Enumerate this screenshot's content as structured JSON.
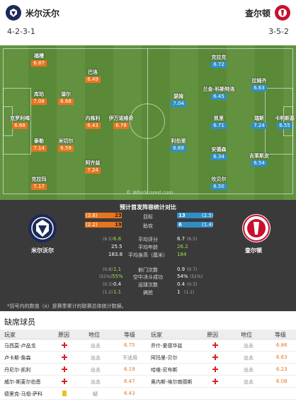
{
  "home": {
    "name": "米尔沃尔",
    "formation": "4-2-3-1"
  },
  "away": {
    "name": "查尔顿",
    "formation": "3-5-2"
  },
  "home_players": [
    {
      "name": "福槽",
      "rating": "6.87"
    },
    {
      "name": "巴洛",
      "rating": "6.49"
    },
    {
      "name": "库珀",
      "rating": "7.08"
    },
    {
      "name": "谐尔",
      "rating": "6.68"
    },
    {
      "name": "克罗利喝",
      "rating": "6.68"
    },
    {
      "name": "内株利",
      "rating": "6.43"
    },
    {
      "name": "伊万诺维奇",
      "rating": "6.78"
    },
    {
      "name": "泰勒",
      "rating": "7.14"
    },
    {
      "name": "米切尔",
      "rating": "6.59"
    },
    {
      "name": "阿齐兹",
      "rating": "7.24"
    },
    {
      "name": "克拉玛",
      "rating": "7.17"
    }
  ],
  "away_players": [
    {
      "name": "克拉克",
      "rating": "6.72"
    },
    {
      "name": "拉姆齐",
      "rating": "6.63"
    },
    {
      "name": "兰金-科斯特洛",
      "rating": "6.45"
    },
    {
      "name": "瑟姆",
      "rating": "7.04"
    },
    {
      "name": "凯里",
      "rating": "6.71"
    },
    {
      "name": "瑞斯",
      "rating": "7.24"
    },
    {
      "name": "卡明斯基",
      "rating": "6.55"
    },
    {
      "name": "利伯里",
      "rating": "6.69"
    },
    {
      "name": "安德森",
      "rating": "6.34"
    },
    {
      "name": "吉莱斯皮",
      "rating": "6.54"
    },
    {
      "name": "坎贝尔",
      "rating": "6.50"
    }
  ],
  "watermark": "© WhoScored.com",
  "stats": {
    "title": "预计首发阵容统计对比",
    "home_label": "米尔沃尔",
    "away_label": "查尔顿",
    "bars": [
      {
        "label": "目标",
        "home": "23",
        "home_prev": "3.8",
        "away": "13",
        "away_prev": "2.5"
      },
      {
        "label": "助攻",
        "home": "19",
        "home_prev": "2.2",
        "away": "6",
        "away_prev": "1.4"
      }
    ],
    "rows": [
      {
        "label": "平均评分",
        "home": "6.8",
        "home_prev": "6.5",
        "away": "6.7",
        "away_prev": "6.5"
      },
      {
        "label": "平均年龄",
        "home": "25.5",
        "away": "26.2"
      },
      {
        "label": "平均身高（厘米）",
        "home": "183.8",
        "away": "184"
      },
      {
        "label": "射门次数",
        "home": "1.1",
        "home_prev": "0.8",
        "away": "0.9",
        "away_prev": "0.7"
      },
      {
        "label": "空中决斗成功",
        "home": "55%",
        "home_prev": "51%",
        "away": "54%",
        "away_prev": "51%"
      },
      {
        "label": "运球次数",
        "home": "0.4",
        "home_prev": "0.3",
        "away": "0.4",
        "away_prev": "0.3"
      },
      {
        "label": "搞抢",
        "home": "1.1",
        "home_prev": "1.2",
        "away": "1",
        "away_prev": "1.1"
      }
    ],
    "note": "*括号内的数值（x）是赛季累计的联赛总体统计数据。"
  },
  "missing": {
    "title": "缺席球员",
    "headers": [
      "玩家",
      "原因",
      "地位",
      "等级",
      "玩家",
      "原因",
      "地位",
      "等级"
    ],
    "rows": [
      {
        "h_name": "马西莫-卢品戈",
        "h_status": "出去",
        "h_rating": "6.75",
        "a_name": "乔什-爱德华兹",
        "a_status": "出去",
        "a_rating": "6.86"
      },
      {
        "h_name": "卢卡斯-詹森",
        "h_status": "出去",
        "h_rating": "不适用",
        "a_name": "阿玛里-贝尔",
        "a_status": "出去",
        "a_rating": "6.63"
      },
      {
        "h_name": "丹尼尔-凯利",
        "h_status": "出去",
        "h_rating": "6.19",
        "a_name": "哈维-尼布斯",
        "a_status": "出去",
        "a_rating": "6.23"
      },
      {
        "h_name": "威尔-斯麦尔伯恩",
        "h_status": "出去",
        "h_rating": "6.47",
        "a_name": "奥内斯-埃尔南德斯",
        "a_status": "出去",
        "a_rating": "6.08"
      },
      {
        "h_name": "德里克-马祖-萨科",
        "h_status": "疑",
        "h_rating": "6.43"
      }
    ]
  }
}
